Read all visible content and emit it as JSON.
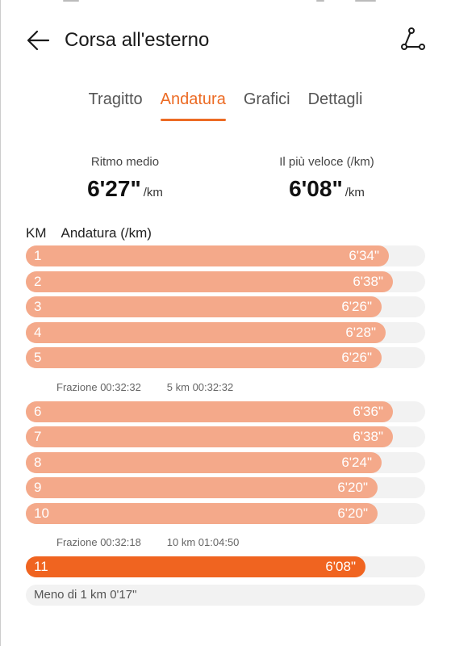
{
  "header": {
    "title": "Corsa all'esterno",
    "back_icon": "arrow-left-icon",
    "route_icon": "route-icon"
  },
  "tabs": [
    {
      "label": "Tragitto",
      "active": false
    },
    {
      "label": "Andatura",
      "active": true
    },
    {
      "label": "Grafici",
      "active": false
    },
    {
      "label": "Dettagli",
      "active": false
    }
  ],
  "summary": {
    "avg_label": "Ritmo medio",
    "avg_value": "6'27\"",
    "avg_unit": "/km",
    "best_label": "Il più veloce (/km)",
    "best_value": "6'08\"",
    "best_unit": "/km"
  },
  "columns": {
    "km": "KM",
    "pace": "Andatura (/km)"
  },
  "splits": [
    {
      "km": "1",
      "pace": "6'34\"",
      "fill": 0.91,
      "fastest": false
    },
    {
      "km": "2",
      "pace": "6'38\"",
      "fill": 0.92,
      "fastest": false
    },
    {
      "km": "3",
      "pace": "6'26\"",
      "fill": 0.89,
      "fastest": false
    },
    {
      "km": "4",
      "pace": "6'28\"",
      "fill": 0.9,
      "fastest": false
    },
    {
      "km": "5",
      "pace": "6'26\"",
      "fill": 0.89,
      "fastest": false
    },
    {
      "summary": true,
      "split": "Frazione 00:32:32",
      "total": "5 km 00:32:32"
    },
    {
      "km": "6",
      "pace": "6'36\"",
      "fill": 0.92,
      "fastest": false
    },
    {
      "km": "7",
      "pace": "6'38\"",
      "fill": 0.92,
      "fastest": false
    },
    {
      "km": "8",
      "pace": "6'24\"",
      "fill": 0.89,
      "fastest": false
    },
    {
      "km": "9",
      "pace": "6'20\"",
      "fill": 0.88,
      "fastest": false
    },
    {
      "km": "10",
      "pace": "6'20\"",
      "fill": 0.88,
      "fastest": false
    },
    {
      "summary": true,
      "split": "Frazione 00:32:18",
      "total": "10 km 01:04:50"
    },
    {
      "km": "11",
      "pace": "6'08\"",
      "fill": 0.85,
      "fastest": true
    }
  ],
  "remainder": "Meno di 1 km 0'17\"",
  "colors": {
    "accent": "#ec6b24",
    "bar": "#f4a98a",
    "bar_fastest": "#f06420",
    "track": "#f2f2f2"
  }
}
